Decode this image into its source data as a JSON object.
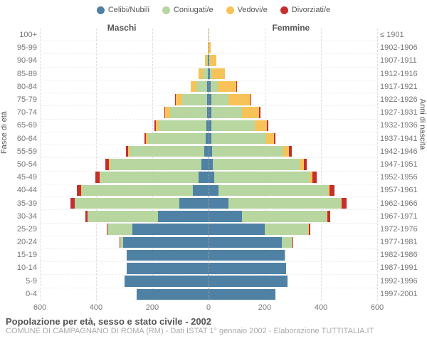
{
  "type": "population-pyramid",
  "legend": [
    {
      "label": "Celibi/Nubili",
      "color": "#4f81a5"
    },
    {
      "label": "Coniugati/e",
      "color": "#b7d6a0"
    },
    {
      "label": "Vedovi/e",
      "color": "#f7c358"
    },
    {
      "label": "Divorziati/e",
      "color": "#c22f2f"
    }
  ],
  "columns": {
    "left": "Maschi",
    "right": "Femmine"
  },
  "ylabel_left": "Fasce di età",
  "ylabel_right": "Anni di nascita",
  "xmax": 600,
  "xticks": [
    -600,
    -400,
    -200,
    0,
    200,
    400,
    600
  ],
  "grid_color": "#dddddd",
  "center_color": "#999999",
  "rows": [
    {
      "age": "100+",
      "birth": "≤ 1901",
      "m": {
        "c": 0,
        "co": 0,
        "v": 1,
        "d": 0
      },
      "f": {
        "c": 0,
        "co": 0,
        "v": 3,
        "d": 0
      }
    },
    {
      "age": "95-99",
      "birth": "1902-1906",
      "m": {
        "c": 0,
        "co": 1,
        "v": 2,
        "d": 0
      },
      "f": {
        "c": 1,
        "co": 0,
        "v": 6,
        "d": 0
      }
    },
    {
      "age": "90-94",
      "birth": "1907-1911",
      "m": {
        "c": 2,
        "co": 4,
        "v": 7,
        "d": 0
      },
      "f": {
        "c": 3,
        "co": 3,
        "v": 22,
        "d": 0
      }
    },
    {
      "age": "85-89",
      "birth": "1912-1916",
      "m": {
        "c": 3,
        "co": 18,
        "v": 14,
        "d": 0
      },
      "f": {
        "c": 5,
        "co": 8,
        "v": 45,
        "d": 0
      }
    },
    {
      "age": "80-84",
      "birth": "1917-1921",
      "m": {
        "c": 4,
        "co": 38,
        "v": 22,
        "d": 0
      },
      "f": {
        "c": 8,
        "co": 25,
        "v": 65,
        "d": 2
      }
    },
    {
      "age": "75-79",
      "birth": "1922-1926",
      "m": {
        "c": 5,
        "co": 88,
        "v": 24,
        "d": 2
      },
      "f": {
        "c": 10,
        "co": 60,
        "v": 80,
        "d": 3
      }
    },
    {
      "age": "70-74",
      "birth": "1927-1931",
      "m": {
        "c": 6,
        "co": 130,
        "v": 18,
        "d": 3
      },
      "f": {
        "c": 10,
        "co": 110,
        "v": 60,
        "d": 4
      }
    },
    {
      "age": "65-69",
      "birth": "1932-1936",
      "m": {
        "c": 8,
        "co": 168,
        "v": 12,
        "d": 4
      },
      "f": {
        "c": 10,
        "co": 155,
        "v": 42,
        "d": 5
      }
    },
    {
      "age": "60-64",
      "birth": "1937-1941",
      "m": {
        "c": 10,
        "co": 205,
        "v": 8,
        "d": 6
      },
      "f": {
        "c": 10,
        "co": 195,
        "v": 28,
        "d": 6
      }
    },
    {
      "age": "55-59",
      "birth": "1942-1946",
      "m": {
        "c": 15,
        "co": 265,
        "v": 6,
        "d": 8
      },
      "f": {
        "c": 12,
        "co": 253,
        "v": 22,
        "d": 8
      }
    },
    {
      "age": "50-54",
      "birth": "1947-1951",
      "m": {
        "c": 25,
        "co": 325,
        "v": 4,
        "d": 12
      },
      "f": {
        "c": 15,
        "co": 308,
        "v": 15,
        "d": 12
      }
    },
    {
      "age": "45-49",
      "birth": "1952-1956",
      "m": {
        "c": 35,
        "co": 350,
        "v": 3,
        "d": 14
      },
      "f": {
        "c": 20,
        "co": 340,
        "v": 10,
        "d": 14
      }
    },
    {
      "age": "40-44",
      "birth": "1957-1961",
      "m": {
        "c": 55,
        "co": 395,
        "v": 2,
        "d": 16
      },
      "f": {
        "c": 35,
        "co": 390,
        "v": 6,
        "d": 16
      }
    },
    {
      "age": "35-39",
      "birth": "1962-1966",
      "m": {
        "c": 105,
        "co": 370,
        "v": 2,
        "d": 14
      },
      "f": {
        "c": 70,
        "co": 400,
        "v": 4,
        "d": 16
      }
    },
    {
      "age": "30-34",
      "birth": "1967-1971",
      "m": {
        "c": 180,
        "co": 250,
        "v": 1,
        "d": 8
      },
      "f": {
        "c": 120,
        "co": 300,
        "v": 2,
        "d": 10
      }
    },
    {
      "age": "25-29",
      "birth": "1972-1976",
      "m": {
        "c": 270,
        "co": 90,
        "v": 0,
        "d": 3
      },
      "f": {
        "c": 200,
        "co": 155,
        "v": 1,
        "d": 5
      }
    },
    {
      "age": "20-24",
      "birth": "1977-1981",
      "m": {
        "c": 305,
        "co": 10,
        "v": 0,
        "d": 1
      },
      "f": {
        "c": 260,
        "co": 40,
        "v": 0,
        "d": 2
      }
    },
    {
      "age": "15-19",
      "birth": "1982-1986",
      "m": {
        "c": 290,
        "co": 1,
        "v": 0,
        "d": 0
      },
      "f": {
        "c": 270,
        "co": 2,
        "v": 0,
        "d": 0
      }
    },
    {
      "age": "10-14",
      "birth": "1987-1991",
      "m": {
        "c": 290,
        "co": 0,
        "v": 0,
        "d": 0
      },
      "f": {
        "c": 276,
        "co": 0,
        "v": 0,
        "d": 0
      }
    },
    {
      "age": "5-9",
      "birth": "1992-1996",
      "m": {
        "c": 300,
        "co": 0,
        "v": 0,
        "d": 0
      },
      "f": {
        "c": 280,
        "co": 0,
        "v": 0,
        "d": 0
      }
    },
    {
      "age": "0-4",
      "birth": "1997-2001",
      "m": {
        "c": 255,
        "co": 0,
        "v": 0,
        "d": 0
      },
      "f": {
        "c": 238,
        "co": 0,
        "v": 0,
        "d": 0
      }
    }
  ],
  "footer": {
    "line1": "Popolazione per età, sesso e stato civile - 2002",
    "line2": "COMUNE DI CAMPAGNANO DI ROMA (RM) - Dati ISTAT 1° gennaio 2002 - Elaborazione TUTTITALIA.IT"
  }
}
